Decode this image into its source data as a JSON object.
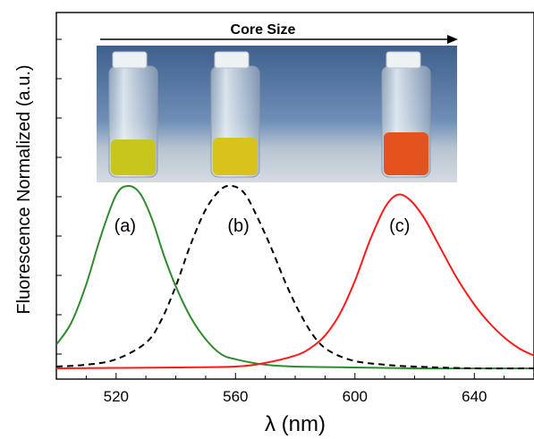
{
  "chart_data": {
    "type": "line",
    "title": "",
    "xlabel": "λ (nm)",
    "ylabel": "Fluorescence Normalized (a.u.)",
    "xlim": [
      500,
      660
    ],
    "ylim": [
      0,
      1.0
    ],
    "x_ticks": [
      520,
      560,
      600,
      640
    ],
    "x_tick_labels": [
      "520",
      "560",
      "600",
      "640"
    ],
    "legend": "none",
    "grid": false,
    "series": [
      {
        "label": "(a)",
        "color": "#2e8b2e",
        "dash": "solid",
        "x": [
          500,
          505,
          510,
          515,
          520,
          524,
          528,
          532,
          536,
          540,
          545,
          550,
          555,
          560,
          570,
          580,
          600,
          620,
          640,
          660
        ],
        "y": [
          0.13,
          0.25,
          0.46,
          0.73,
          0.95,
          1.0,
          0.96,
          0.82,
          0.62,
          0.45,
          0.28,
          0.16,
          0.08,
          0.05,
          0.02,
          0.01,
          0.005,
          0.0,
          0.0,
          0.0
        ]
      },
      {
        "label": "(b)",
        "color": "#000000",
        "dash": "dashed",
        "x": [
          500,
          510,
          520,
          530,
          535,
          540,
          545,
          550,
          555,
          559,
          563,
          567,
          572,
          577,
          582,
          587,
          592,
          600,
          610,
          620,
          640,
          660
        ],
        "y": [
          0.01,
          0.02,
          0.05,
          0.14,
          0.26,
          0.45,
          0.68,
          0.87,
          0.98,
          1.0,
          0.96,
          0.84,
          0.66,
          0.46,
          0.29,
          0.16,
          0.09,
          0.04,
          0.02,
          0.01,
          0.0,
          0.0
        ]
      },
      {
        "label": "(c)",
        "color": "#ff1a1a",
        "dash": "solid",
        "x": [
          500,
          540,
          560,
          570,
          580,
          585,
          590,
          595,
          600,
          605,
          610,
          614,
          618,
          623,
          628,
          634,
          640,
          645,
          650,
          655,
          660
        ],
        "y": [
          0.0,
          0.005,
          0.01,
          0.03,
          0.07,
          0.11,
          0.18,
          0.3,
          0.48,
          0.7,
          0.88,
          0.95,
          0.93,
          0.83,
          0.68,
          0.5,
          0.35,
          0.25,
          0.17,
          0.11,
          0.07
        ]
      }
    ],
    "annotations": [
      {
        "text": "(a)",
        "x": 523,
        "y": 0.75
      },
      {
        "text": "(b)",
        "x": 561,
        "y": 0.75
      },
      {
        "text": "(c)",
        "x": 615,
        "y": 0.75
      }
    ],
    "inset": {
      "arrow_label": "Core Size",
      "vial_colors": [
        "#c8c61a",
        "#d9c21c",
        "#e4521e"
      ]
    }
  }
}
